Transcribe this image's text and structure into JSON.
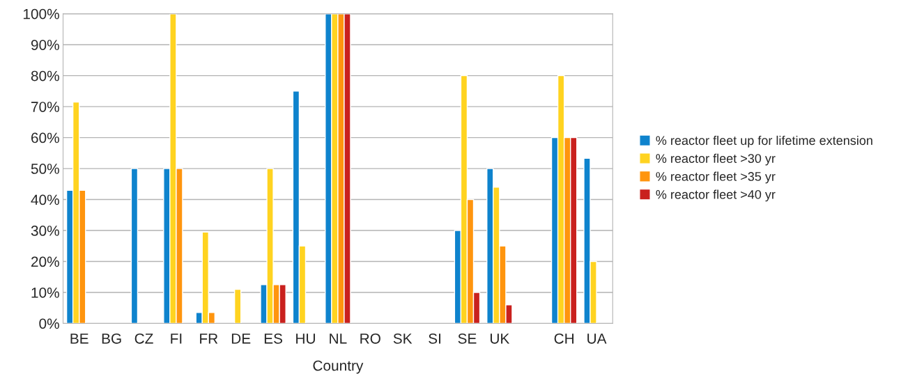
{
  "chart_data": {
    "type": "bar",
    "xlabel": "Country",
    "categories": [
      "BE",
      "BG",
      "CZ",
      "FI",
      "FR",
      "DE",
      "ES",
      "HU",
      "NL",
      "RO",
      "SK",
      "SI",
      "SE",
      "UK",
      null,
      "CH",
      "UA"
    ],
    "series": [
      {
        "name": "% reactor fleet up for lifetime extension",
        "color": "#0e83cd",
        "values": [
          43,
          null,
          50,
          50,
          3.5,
          null,
          12.5,
          75,
          100,
          null,
          null,
          null,
          30,
          50,
          null,
          60,
          53.3
        ]
      },
      {
        "name": "% reactor fleet >30 yr",
        "color": "#ffd320",
        "values": [
          71.5,
          null,
          null,
          100,
          29.5,
          11,
          50,
          25,
          100,
          null,
          null,
          null,
          80,
          44,
          null,
          80,
          20
        ]
      },
      {
        "name": "% reactor fleet >35 yr",
        "color": "#ff950e",
        "values": [
          43,
          null,
          null,
          50,
          3.5,
          null,
          12.5,
          null,
          100,
          null,
          null,
          null,
          40,
          25,
          null,
          60,
          null
        ]
      },
      {
        "name": "% reactor fleet >40 yr",
        "color": "#c9211e",
        "values": [
          null,
          null,
          null,
          null,
          null,
          null,
          12.5,
          null,
          100,
          null,
          null,
          null,
          10,
          6,
          null,
          60,
          null
        ]
      }
    ],
    "ylim": [
      0,
      100
    ],
    "yticks": [
      {
        "value": 0,
        "label": "0%"
      },
      {
        "value": 10,
        "label": "10%"
      },
      {
        "value": 20,
        "label": "20%"
      },
      {
        "value": 30,
        "label": "30%"
      },
      {
        "value": 40,
        "label": "40%"
      },
      {
        "value": 50,
        "label": "50%"
      },
      {
        "value": 60,
        "label": "60%"
      },
      {
        "value": 70,
        "label": "70%"
      },
      {
        "value": 80,
        "label": "80%"
      },
      {
        "value": 90,
        "label": "90%"
      },
      {
        "value": 100,
        "label": "100%"
      }
    ],
    "grid": "y",
    "legend": "right"
  }
}
